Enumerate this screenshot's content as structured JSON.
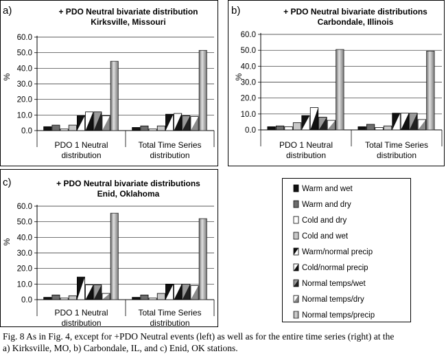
{
  "legend": {
    "items": [
      {
        "label": "Warm and wet",
        "style": "black"
      },
      {
        "label": "Warm and dry",
        "style": "darkgray"
      },
      {
        "label": "Cold and dry",
        "style": "white"
      },
      {
        "label": "Cold and wet",
        "style": "lightgray"
      },
      {
        "label": "Warm/normal precip",
        "style": "diag-black-white"
      },
      {
        "label": "Cold/normal precip",
        "style": "diag-white-black"
      },
      {
        "label": "Normal temps/wet",
        "style": "diag-gray-black"
      },
      {
        "label": "Normal temps/dry",
        "style": "diag-white-gray"
      },
      {
        "label": "Normal temps/precip",
        "style": "cylinder-gray"
      }
    ]
  },
  "caption": {
    "line1": "Fig. 8 As in Fig. 4, except for +PDO Neutral events (left) as well as for the entire time series (right) at the",
    "line2": "a) Kirksville, MO, b) Carbondale, IL, and c) Enid, OK stations."
  },
  "chart_data": [
    {
      "type": "bar",
      "panel_label": "a)",
      "title_line1": "+ PDO Neutral bivariate distribution",
      "title_line2": "Kirksville, Missouri",
      "ylabel": "%",
      "ylim": [
        0,
        60
      ],
      "yticks": [
        "0.0",
        "10.0",
        "20.0",
        "30.0",
        "40.0",
        "50.0",
        "60.0"
      ],
      "categories": [
        {
          "line1": "PDO 1 Neutral",
          "line2": "distribution"
        },
        {
          "line1": "Total Time Series",
          "line2": "distribution"
        }
      ],
      "series": [
        {
          "name": "Warm and wet",
          "values": [
            2.5,
            2.0
          ]
        },
        {
          "name": "Warm and dry",
          "values": [
            3.5,
            3.0
          ]
        },
        {
          "name": "Cold and dry",
          "values": [
            1.0,
            1.0
          ]
        },
        {
          "name": "Cold and wet",
          "values": [
            3.5,
            3.0
          ]
        },
        {
          "name": "Warm/normal precip",
          "values": [
            9.5,
            10.5
          ]
        },
        {
          "name": "Cold/normal precip",
          "values": [
            12.0,
            11.0
          ]
        },
        {
          "name": "Normal temps/wet",
          "values": [
            12.0,
            9.5
          ]
        },
        {
          "name": "Normal temps/dry",
          "values": [
            9.5,
            9.0
          ]
        },
        {
          "name": "Normal temps/precip",
          "values": [
            44.5,
            51.5
          ]
        }
      ]
    },
    {
      "type": "bar",
      "panel_label": "b)",
      "title_line1": "+ PDO Neutral bivariate distributions",
      "title_line2": "Carbondale, Illinois",
      "ylabel": "%",
      "ylim": [
        0,
        60
      ],
      "yticks": [
        "0.0",
        "10.0",
        "20.0",
        "30.0",
        "40.0",
        "50.0",
        "60.0"
      ],
      "categories": [
        {
          "line1": "PDO 1 Neutral",
          "line2": "distribution"
        },
        {
          "line1": "Total Time Series",
          "line2": "distribution"
        }
      ],
      "series": [
        {
          "name": "Warm and wet",
          "values": [
            2.0,
            2.0
          ]
        },
        {
          "name": "Warm and dry",
          "values": [
            2.5,
            3.5
          ]
        },
        {
          "name": "Cold and dry",
          "values": [
            2.0,
            1.5
          ]
        },
        {
          "name": "Cold and wet",
          "values": [
            4.5,
            2.5
          ]
        },
        {
          "name": "Warm/normal precip",
          "values": [
            9.0,
            10.5
          ]
        },
        {
          "name": "Cold/normal precip",
          "values": [
            14.0,
            10.5
          ]
        },
        {
          "name": "Normal temps/wet",
          "values": [
            8.0,
            10.5
          ]
        },
        {
          "name": "Normal temps/dry",
          "values": [
            6.0,
            6.5
          ]
        },
        {
          "name": "Normal temps/precip",
          "values": [
            50.5,
            49.5
          ]
        }
      ]
    },
    {
      "type": "bar",
      "panel_label": "c)",
      "title_line1": "+ PDO Neutral bivariate distributions",
      "title_line2": "Enid, Oklahoma",
      "ylabel": "%",
      "ylim": [
        0,
        60
      ],
      "yticks": [
        "0.0",
        "10.0",
        "20.0",
        "30.0",
        "40.0",
        "50.0",
        "60.0"
      ],
      "categories": [
        {
          "line1": "PDO 1 Neutral",
          "line2": "distribution"
        },
        {
          "line1": "Total Time Series",
          "line2": "distribution"
        }
      ],
      "series": [
        {
          "name": "Warm and wet",
          "values": [
            1.5,
            1.5
          ]
        },
        {
          "name": "Warm and dry",
          "values": [
            3.0,
            3.0
          ]
        },
        {
          "name": "Cold and dry",
          "values": [
            1.0,
            1.0
          ]
        },
        {
          "name": "Cold and wet",
          "values": [
            2.5,
            4.0
          ]
        },
        {
          "name": "Warm/normal precip",
          "values": [
            14.5,
            10.0
          ]
        },
        {
          "name": "Cold/normal precip",
          "values": [
            9.5,
            10.0
          ]
        },
        {
          "name": "Normal temps/wet",
          "values": [
            9.5,
            10.0
          ]
        },
        {
          "name": "Normal temps/dry",
          "values": [
            4.0,
            9.0
          ]
        },
        {
          "name": "Normal temps/precip",
          "values": [
            55.5,
            52.0
          ]
        }
      ]
    }
  ]
}
